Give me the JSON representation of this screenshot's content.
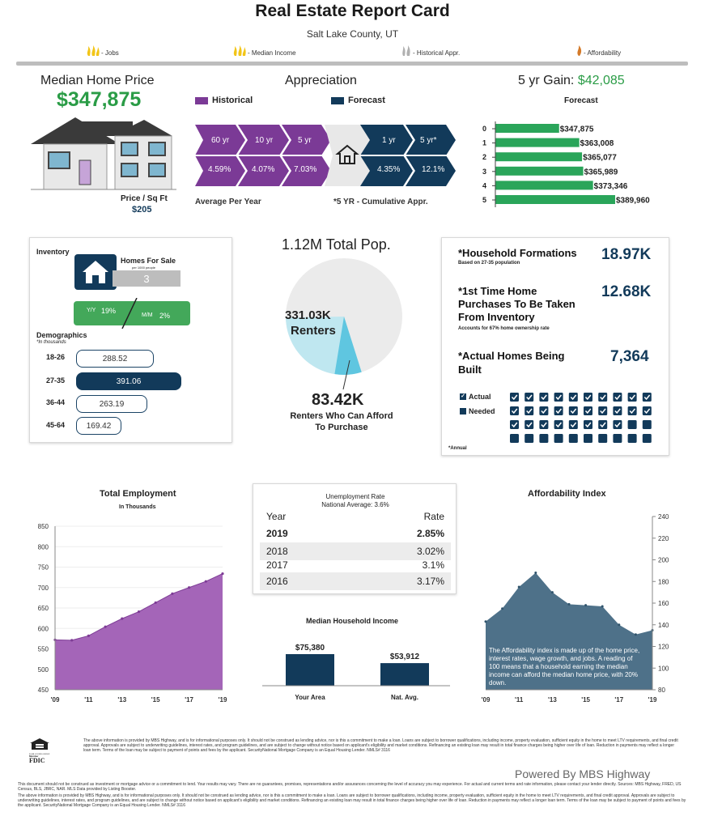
{
  "header": {
    "title": "Real Estate Report Card",
    "location": "Salt Lake County, UT",
    "legend": [
      {
        "label": "- Jobs",
        "icon": "gold-indicator-icon",
        "color": "#f2c518"
      },
      {
        "label": "- Median Income",
        "icon": "gold-indicator-icon",
        "color": "#f2c518"
      },
      {
        "label": "- Historical Appr.",
        "icon": "silver-indicator-icon",
        "color": "#b0b0b0"
      },
      {
        "label": "- Affordability",
        "icon": "bronze-indicator-icon",
        "color": "#d47a2a"
      }
    ]
  },
  "median_price": {
    "label": "Median Home Price",
    "value": "$347,875",
    "price_sqft_label": "Price / Sq Ft",
    "price_sqft_value": "$205"
  },
  "appreciation": {
    "title": "Appreciation",
    "legend_historical": "Historical",
    "legend_forecast": "Forecast",
    "historical": [
      {
        "period": "60 yr",
        "rate": "4.59%"
      },
      {
        "period": "10 yr",
        "rate": "4.07%"
      },
      {
        "period": "5 yr",
        "rate": "7.03%"
      }
    ],
    "forecast": [
      {
        "period": "1 yr",
        "rate": "4.35%"
      },
      {
        "period": "5 yr*",
        "rate": "12.1%"
      }
    ],
    "note_left": "Average Per Year",
    "note_right": "*5 YR - Cumulative Appr.",
    "colors": {
      "historical": "#7b3a96",
      "forecast": "#123a5a"
    }
  },
  "five_yr_gain": {
    "label": "5 yr Gain:",
    "value": "$42,085",
    "subtitle": "Forecast",
    "bars": [
      {
        "year": "0",
        "value": 347875,
        "label": "$347,875"
      },
      {
        "year": "1",
        "value": 363008,
        "label": "$363,008"
      },
      {
        "year": "2",
        "value": 365077,
        "label": "$365,077"
      },
      {
        "year": "3",
        "value": 365989,
        "label": "$365,989"
      },
      {
        "year": "4",
        "value": 373346,
        "label": "$373,346"
      },
      {
        "year": "5",
        "value": 389960,
        "label": "$389,960"
      }
    ]
  },
  "inventory": {
    "title": "Inventory",
    "homes_for_sale_label": "Homes For Sale",
    "per_label": "per 1000 people",
    "homes_for_sale_value": "3",
    "yy_label": "Y/Y",
    "yy_value": "19%",
    "mm_label": "M/M",
    "mm_value": "2%",
    "demographics_title": "Demographics",
    "demographics_sub": "*In thousands",
    "demographics": [
      {
        "age": "18-26",
        "value": "288.52",
        "num": 288.52,
        "highlight": false
      },
      {
        "age": "27-35",
        "value": "391.06",
        "num": 391.06,
        "highlight": true
      },
      {
        "age": "36-44",
        "value": "263.19",
        "num": 263.19,
        "highlight": false
      },
      {
        "age": "45-64",
        "value": "169.42",
        "num": 169.42,
        "highlight": false
      }
    ]
  },
  "population": {
    "title": "1.12M Total Pop.",
    "renters_value": "331.03K",
    "renters_label": "Renters",
    "afford_value": "83.42K",
    "afford_label": "Renters Who Can Afford To Purchase",
    "total_k": 1120,
    "renters_k": 331.03,
    "afford_k": 83.42
  },
  "households": {
    "formations_label": "*Household Formations",
    "formations_sub": "Based on 27-35 population",
    "formations_value": "18.97K",
    "first_time_label": "*1st Time Home Purchases To Be Taken From Inventory",
    "first_time_sub": "Accounts for 67% home ownership rate",
    "first_time_value": "12.68K",
    "built_label": "*Actual Homes Being Built",
    "built_value": "7,364",
    "legend_actual": "Actual",
    "legend_needed": "Needed",
    "annual_note": "*Annual",
    "grid_actual": 28,
    "grid_total": 40
  },
  "employment": {
    "title": "Total Employment",
    "subtitle": "In Thousands",
    "x_ticks": [
      "'09",
      "'11",
      "'13",
      "'15",
      "'17",
      "'19"
    ],
    "y_ticks": [
      "850",
      "800",
      "750",
      "700",
      "650",
      "600",
      "550",
      "500",
      "450"
    ],
    "chart_data": {
      "type": "area",
      "x": [
        2009,
        2010,
        2011,
        2012,
        2013,
        2014,
        2015,
        2016,
        2017,
        2018,
        2019
      ],
      "values": [
        572,
        571,
        582,
        604,
        624,
        641,
        663,
        685,
        700,
        715,
        734
      ],
      "ylim": [
        450,
        850
      ]
    }
  },
  "unemployment": {
    "title": "Unemployment Rate",
    "subtitle": "National Average: 3.6%",
    "col_year": "Year",
    "col_rate": "Rate",
    "rows": [
      {
        "year": "2019",
        "rate": "2.85%"
      },
      {
        "year": "2018",
        "rate": "3.02%"
      },
      {
        "year": "2017",
        "rate": "3.1%"
      },
      {
        "year": "2016",
        "rate": "3.17%"
      }
    ]
  },
  "household_income": {
    "title": "Median Household Income",
    "bars": [
      {
        "label": "Your Area",
        "value": 75380,
        "display": "$75,380"
      },
      {
        "label": "Nat. Avg.",
        "value": 53912,
        "display": "$53,912"
      }
    ]
  },
  "affordability": {
    "title": "Affordability Index",
    "note": "The Affordability index is made up of the home price, interest rates, wage growth, and jobs. A reading of 100 means that a household earning the median income can afford the median home price, with 20% down.",
    "x_ticks": [
      "'09",
      "'11",
      "'13",
      "'15",
      "'17",
      "'19"
    ],
    "y_ticks": [
      "240",
      "220",
      "200",
      "180",
      "160",
      "140",
      "120",
      "100",
      "80"
    ],
    "chart_data": {
      "type": "area",
      "x": [
        2009,
        2010,
        2011,
        2012,
        2013,
        2014,
        2015,
        2016,
        2017,
        2018,
        2019
      ],
      "values": [
        143,
        155,
        175,
        188,
        170,
        159,
        158,
        157,
        140,
        131,
        135
      ],
      "ylim": [
        80,
        240
      ]
    }
  },
  "footer": {
    "disclaimer_1": "The above information is provided by MBS Highway, and is for informational purposes only. It should not be construed as lending advice, nor is this a commitment to make a loan. Loans are subject to borrower qualifications, including income, property evaluation, sufficient equity in the home to meet LTV requirements, and final credit approval. Approvals are subject to underwriting guidelines, interest rates, and program guidelines, and are subject to change without notice based on applicant's eligibility and market conditions. Refinancing an existing loan may result in total finance charges being higher over life of loan. Reduction in payments may reflect a longer loan term. Terms of the loan may be subject to payment of points and fees by the applicant. SecurityNational Mortgage Company is an Equal Housing Lender. NMLS# 3116",
    "powered_by": "Powered By MBS Highway",
    "disclaimer_2": "This document should not be construed as investment or mortgage advice or a commitment to lend. Your results may vary. There are no guarantees, promises, representations and/or assurances concerning the level of accuracy you may experience. For actual and current terms and rate information, please contact your lender directly. Sources: MBS Highway, FRED, US Census, BLS, JBRC, NAR. MLS Data provided by Listing Booster.",
    "disclaimer_3": "The above information is provided by MBS Highway, and is for informational purposes only. It should not be construed as lending advice, nor is this a commitment to make a loan. Loans are subject to borrower qualifications, including income, property evaluation, sufficient equity in the home to meet LTV requirements, and final credit approval. Approvals are subject to underwriting guidelines, interest rates, and program guidelines, and are subject to change without notice based on applicant's eligibility and market conditions. Refinancing an existing loan may result in total finance charges being higher over life of loan. Reduction in payments may reflect a longer loan term. Terms of the loan may be subject to payment of points and fees by the applicant. SecurityNational Mortgage Company is an Equal Housing Lender. NMLS# 3116",
    "ehl_text": "EQUAL HOUSING LENDER",
    "fdic_member": "Member",
    "fdic_text": "FDIC"
  }
}
